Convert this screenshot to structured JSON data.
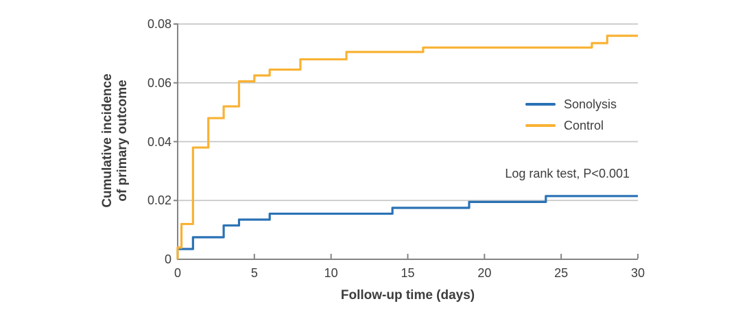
{
  "figure": {
    "background": "#ffffff"
  },
  "style_colors": {
    "axis": "#848484",
    "grid": "#c7c7c7",
    "text": "#3d3d3d",
    "sonolysis_blue": "#2a72b5",
    "control_yellow": "#f9b234"
  },
  "chart_data": {
    "type": "line",
    "style": "step-after",
    "title": "",
    "xlabel": "Follow-up time (days)",
    "ylabel_line1": "Cumulative incidence",
    "ylabel_line2": "of primary outcome",
    "xlim": [
      0,
      30
    ],
    "ylim": [
      0,
      0.08
    ],
    "grid": "horizontal gridlines at each y tick, light gray",
    "legend_position": "inside-right",
    "annotation": "Log rank test, P<0.001",
    "x_ticks": [
      {
        "value": 0,
        "label": "0"
      },
      {
        "value": 5,
        "label": "5"
      },
      {
        "value": 10,
        "label": "10"
      },
      {
        "value": 15,
        "label": "15"
      },
      {
        "value": 20,
        "label": "20"
      },
      {
        "value": 25,
        "label": "25"
      },
      {
        "value": 30,
        "label": "30"
      }
    ],
    "y_ticks": [
      {
        "value": 0,
        "label": "0"
      },
      {
        "value": 0.02,
        "label": "0.02"
      },
      {
        "value": 0.04,
        "label": "0.04"
      },
      {
        "value": 0.06,
        "label": "0.06"
      },
      {
        "value": 0.08,
        "label": "0.08"
      }
    ],
    "series": [
      {
        "name": "Sonolysis",
        "color": "#2a72b5",
        "points": [
          [
            0,
            0
          ],
          [
            0,
            0.0035
          ],
          [
            1,
            0.0075
          ],
          [
            3,
            0.0115
          ],
          [
            4,
            0.0135
          ],
          [
            6,
            0.0155
          ],
          [
            14,
            0.0175
          ],
          [
            19,
            0.0195
          ],
          [
            24,
            0.0215
          ],
          [
            30,
            0.0215
          ]
        ]
      },
      {
        "name": "Control",
        "color": "#f9b234",
        "points": [
          [
            0,
            0
          ],
          [
            0,
            0.004
          ],
          [
            0.25,
            0.012
          ],
          [
            1,
            0.038
          ],
          [
            2,
            0.048
          ],
          [
            3,
            0.052
          ],
          [
            4,
            0.0605
          ],
          [
            5,
            0.0625
          ],
          [
            6,
            0.0645
          ],
          [
            8,
            0.068
          ],
          [
            11,
            0.0705
          ],
          [
            16,
            0.072
          ],
          [
            27,
            0.0735
          ],
          [
            28,
            0.076
          ],
          [
            30,
            0.076
          ]
        ]
      }
    ]
  }
}
